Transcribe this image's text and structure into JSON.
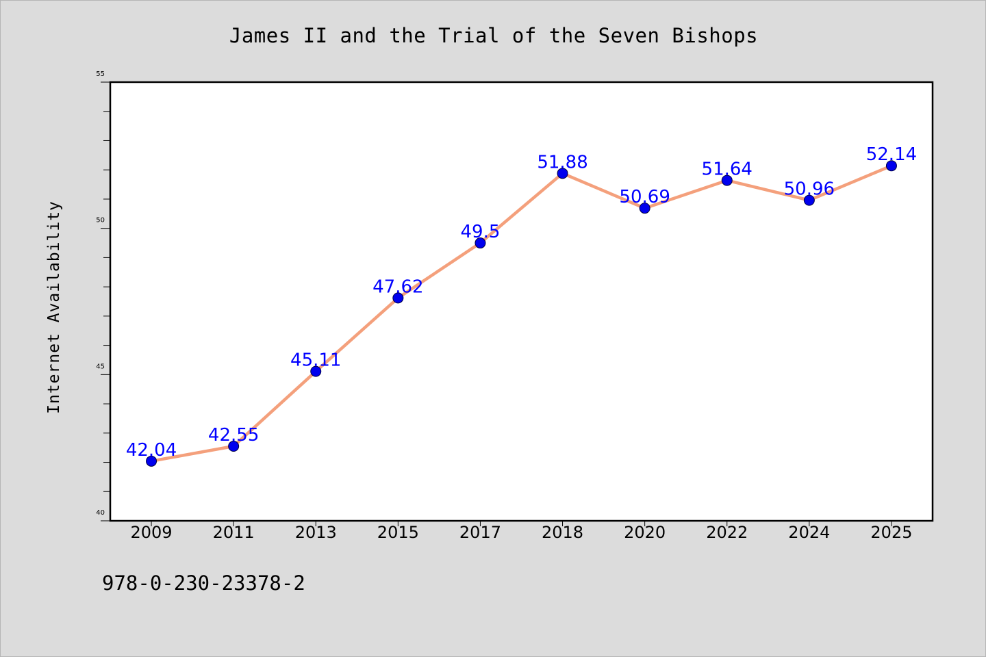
{
  "chart_data": {
    "type": "line",
    "title": "James II and the Trial of the Seven Bishops",
    "xlabel": "",
    "ylabel": "Internet Availability",
    "categories": [
      "2009",
      "2011",
      "2013",
      "2015",
      "2017",
      "2018",
      "2020",
      "2022",
      "2024",
      "2025"
    ],
    "series": [
      {
        "values": [
          42.04,
          42.55,
          45.11,
          47.62,
          49.5,
          51.88,
          50.69,
          51.64,
          50.96,
          52.14
        ],
        "labels": [
          "42.04",
          "42.55",
          "45.11",
          "47.62",
          "49.5",
          "51.88",
          "50.69",
          "51.64",
          "50.96",
          "52.14"
        ]
      }
    ],
    "ylim": [
      40,
      55
    ],
    "yticks": [
      "40",
      "45",
      "50",
      "55"
    ],
    "grid": false,
    "line_color": "#f4a07c",
    "marker_color": "#0000ee",
    "label_color": "#0000ff"
  },
  "footer": {
    "isbn": "978-0-230-23378-2"
  }
}
